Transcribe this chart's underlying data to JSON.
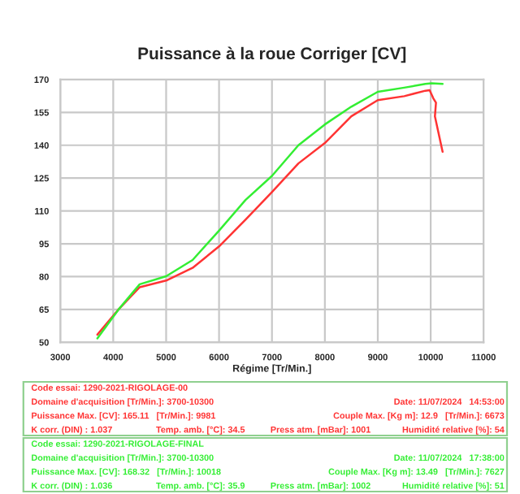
{
  "chart_data": {
    "type": "line",
    "title": "Puissance à la roue Corriger [CV]",
    "xlabel": "Régime [Tr/Min.]",
    "xlim": [
      3000,
      11000
    ],
    "xticks": [
      3000,
      4000,
      5000,
      6000,
      7000,
      8000,
      9000,
      10000,
      11000
    ],
    "ylim": [
      50,
      170
    ],
    "yticks": [
      50,
      65,
      80,
      95,
      110,
      125,
      140,
      155,
      170
    ],
    "grid": true,
    "marker": "none",
    "line_style": "solid",
    "series": [
      {
        "color": "#ff3333",
        "x": [
          3700,
          4100,
          4500,
          5000,
          5500,
          6000,
          6500,
          7000,
          7500,
          8000,
          8500,
          9000,
          9500,
          9900,
          9980,
          10050,
          10100,
          10080,
          10225
        ],
        "values": [
          53.5,
          65,
          75.2,
          78.2,
          84,
          93.8,
          106,
          118.6,
          131.7,
          141,
          153.2,
          160.6,
          162.4,
          164.9,
          165.1,
          161.4,
          159.4,
          153.2,
          137
        ]
      },
      {
        "color": "#33ee33",
        "x": [
          3700,
          4100,
          4500,
          5000,
          5500,
          6000,
          6500,
          7000,
          7500,
          8000,
          8500,
          9000,
          9500,
          9900,
          10018,
          10225
        ],
        "values": [
          51.8,
          65,
          76.5,
          80.2,
          87.6,
          101,
          115,
          126,
          140,
          149.5,
          157.6,
          164.4,
          166.3,
          168,
          168.3,
          168
        ]
      }
    ],
    "annotations": [
      "Code essai: 1290-2021-RIGOLAGE-00",
      "Domaine d'acquisition [Tr/Min.]: 3700-10300",
      "Date: 11/07/2024   14:53:00",
      "Puissance Max. [CV]: 165.11   [Tr/Min.]: 9981",
      "Couple Max. [Kg m]: 12.9   [Tr/Min.]: 6673",
      "K corr. (DIN) : 1.037",
      "Temp. amb. [°C]: 34.5",
      "Press atm. [mBar]: 1001",
      "Humidité relative [%]: 54",
      "Code essai: 1290-2021-RIGOLAGE-FINAL",
      "Domaine d'acquisition [Tr/Min.]: 3700-10300",
      "Date: 11/07/2024   17:38:00",
      "Puissance Max. [CV]: 168.32   [Tr/Min.]: 10018",
      "Couple Max. [Kg m]: 13.49   [Tr/Min.]: 7627",
      "K corr. (DIN) : 1.036",
      "Temp. amb. [°C]: 35.9",
      "Press atm. [mBar]: 1002",
      "Humidité relative [%]: 51"
    ]
  }
}
